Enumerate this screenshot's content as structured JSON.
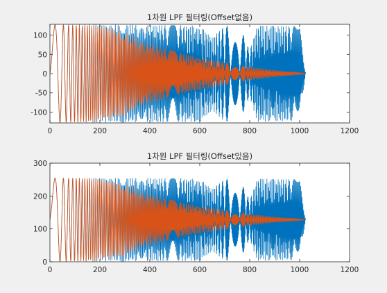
{
  "colors": {
    "window_bg": "#f0f0f0",
    "axes_bg": "#ffffff",
    "axis": "#262626",
    "input_series": "#0072bd",
    "output_series": "#d95319"
  },
  "chart_data": [
    {
      "type": "line",
      "title": "1차원 LPF 필터링(Offset없음)",
      "xlabel": "",
      "ylabel": "",
      "xlim": [
        0,
        1200
      ],
      "ylim": [
        -128,
        128
      ],
      "xticks": [
        0,
        200,
        400,
        600,
        800,
        1000,
        1200
      ],
      "yticks": [
        -100,
        -50,
        0,
        50,
        100
      ],
      "x_tick_labels": [
        "0",
        "200",
        "400",
        "600",
        "800",
        "1000",
        "1200"
      ],
      "y_tick_labels": [
        "-100",
        "-50",
        "0",
        "50",
        "100"
      ],
      "grid": false,
      "legend": "none",
      "series": [
        {
          "color": "#0072bd",
          "kind": "chirp_input",
          "x_range": [
            0,
            1024
          ],
          "offset": 0,
          "amplitude": 127,
          "dense_envelope": [
            [
              300,
              127
            ],
            [
              600,
              125
            ],
            [
              650,
              95
            ],
            [
              700,
              125
            ],
            [
              760,
              124
            ],
            [
              800,
              60
            ],
            [
              830,
              125
            ],
            [
              1000,
              123
            ],
            [
              1024,
              0
            ]
          ]
        },
        {
          "color": "#d95319",
          "kind": "lpf_output",
          "x_range": [
            0,
            1024
          ],
          "offset": 0,
          "envelope": [
            [
              0,
              127
            ],
            [
              150,
              127
            ],
            [
              250,
              118
            ],
            [
              300,
              107
            ],
            [
              350,
              90
            ],
            [
              400,
              78
            ],
            [
              500,
              58
            ],
            [
              600,
              42
            ],
            [
              700,
              30
            ],
            [
              800,
              18
            ],
            [
              900,
              9
            ],
            [
              1000,
              3
            ],
            [
              1024,
              0
            ]
          ]
        }
      ]
    },
    {
      "type": "line",
      "title": "1차원 LPF 필터링(Offset있음)",
      "xlabel": "",
      "ylabel": "",
      "xlim": [
        0,
        1200
      ],
      "ylim": [
        0,
        300
      ],
      "xticks": [
        0,
        200,
        400,
        600,
        800,
        1000,
        1200
      ],
      "yticks": [
        0,
        100,
        200,
        300
      ],
      "x_tick_labels": [
        "0",
        "200",
        "400",
        "600",
        "800",
        "1000",
        "1200"
      ],
      "y_tick_labels": [
        "0",
        "100",
        "200",
        "300"
      ],
      "grid": false,
      "legend": "none",
      "series": [
        {
          "color": "#0072bd",
          "kind": "chirp_input",
          "x_range": [
            0,
            1024
          ],
          "offset": 128,
          "amplitude": 127,
          "dense_envelope": [
            [
              300,
              127
            ],
            [
              600,
              125
            ],
            [
              650,
              95
            ],
            [
              700,
              125
            ],
            [
              760,
              124
            ],
            [
              800,
              60
            ],
            [
              830,
              125
            ],
            [
              1000,
              123
            ],
            [
              1024,
              0
            ]
          ]
        },
        {
          "color": "#d95319",
          "kind": "lpf_output",
          "x_range": [
            0,
            1024
          ],
          "offset": 128,
          "envelope": [
            [
              0,
              127
            ],
            [
              150,
              127
            ],
            [
              250,
              118
            ],
            [
              300,
              107
            ],
            [
              350,
              90
            ],
            [
              400,
              78
            ],
            [
              500,
              58
            ],
            [
              600,
              42
            ],
            [
              700,
              30
            ],
            [
              800,
              18
            ],
            [
              900,
              9
            ],
            [
              1000,
              3
            ],
            [
              1024,
              0
            ]
          ]
        }
      ]
    }
  ]
}
